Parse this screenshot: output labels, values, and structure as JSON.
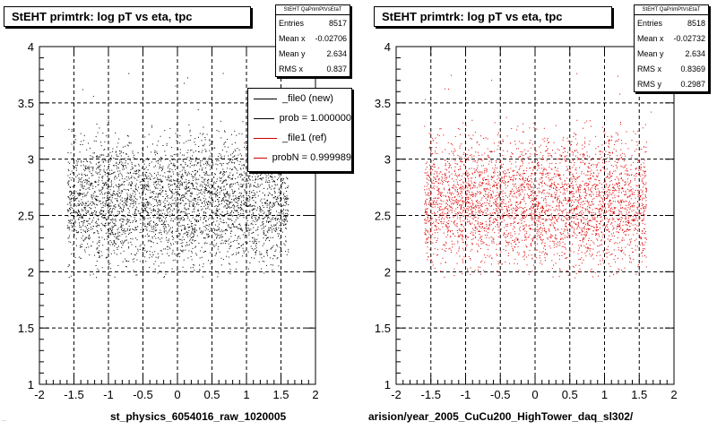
{
  "chart_data": [
    {
      "type": "scatter",
      "title": "StEHT primtrk: log pT vs eta, tpc",
      "xlabel": "st_physics_6054016_raw_1020005",
      "ylabel": "",
      "xlim": [
        -2,
        2
      ],
      "ylim": [
        1,
        4
      ],
      "x_ticks": [
        "-2",
        "-1.5",
        "-1",
        "-0.5",
        "0",
        "0.5",
        "1",
        "1.5",
        "2"
      ],
      "y_ticks": [
        "1",
        "1.5",
        "2",
        "2.5",
        "3",
        "3.5",
        "4"
      ],
      "grid": true,
      "point_color": "#000000",
      "x_range_points": [
        -1.6,
        1.6
      ],
      "y_range_points": [
        1.95,
        3.35
      ],
      "stats": {
        "header": "StEHT QaPrimPtVsEtaT",
        "rows": [
          {
            "label": "Entries",
            "value": "8517"
          },
          {
            "label": "Mean x",
            "value": "-0.02706"
          },
          {
            "label": "Mean y",
            "value": "2.634"
          },
          {
            "label": "RMS x",
            "value": "0.837"
          }
        ]
      },
      "legend": [
        {
          "label": "_file0 (new)",
          "color": "#000000"
        },
        {
          "label": "prob = 1.000000",
          "color": "#000000"
        },
        {
          "label": "_file1 (ref)",
          "color": "#cc0000"
        },
        {
          "label": "probN = 0.999989",
          "color": "#cc0000"
        }
      ]
    },
    {
      "type": "scatter",
      "title": "StEHT primtrk: log pT vs eta, tpc",
      "xlabel": "arision/year_2005_CuCu200_HighTower_daq_sl302/",
      "ylabel": "",
      "xlim": [
        -2,
        2
      ],
      "ylim": [
        1,
        4
      ],
      "x_ticks": [
        "-2",
        "-1.5",
        "-1",
        "-0.5",
        "0",
        "0.5",
        "1",
        "1.5",
        "2"
      ],
      "y_ticks": [
        "1",
        "1.5",
        "2",
        "2.5",
        "3",
        "3.5",
        "4"
      ],
      "grid": true,
      "point_color": "#dd0000",
      "x_range_points": [
        -1.6,
        1.6
      ],
      "y_range_points": [
        1.95,
        3.35
      ],
      "stats": {
        "header": "StEHT QaPrimPtVsEtaT",
        "rows": [
          {
            "label": "Entries",
            "value": "8518"
          },
          {
            "label": "Mean x",
            "value": "-0.02732"
          },
          {
            "label": "Mean y",
            "value": "2.634"
          },
          {
            "label": "RMS x",
            "value": "0.8369"
          },
          {
            "label": "RMS y",
            "value": "0.2987"
          }
        ]
      }
    }
  ],
  "footer_left": "..."
}
